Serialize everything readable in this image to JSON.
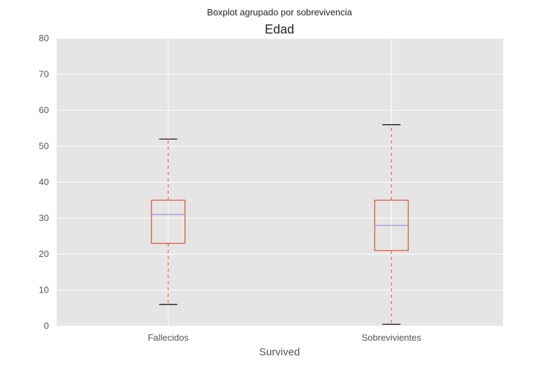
{
  "chart_data": {
    "type": "boxplot",
    "suptitle": "Boxplot agrupado por sobrevivencia",
    "title": "Edad",
    "xlabel": "Survived",
    "ylabel": "",
    "ylim": [
      0,
      80
    ],
    "yticks": [
      0,
      10,
      20,
      30,
      40,
      50,
      60,
      70,
      80
    ],
    "categories": [
      "Fallecidos",
      "Sobrevivientes"
    ],
    "boxes": [
      {
        "category": "Fallecidos",
        "whisker_low": 6,
        "q1": 23,
        "median": 31,
        "q3": 35,
        "whisker_high": 52
      },
      {
        "category": "Sobrevivientes",
        "whisker_low": 0.5,
        "q1": 21,
        "median": 28,
        "q3": 35,
        "whisker_high": 56
      }
    ],
    "grid": true,
    "colors": {
      "background": "#e5e5e5",
      "grid": "#ffffff",
      "box": "#e24a33",
      "median": "#988ed5",
      "cap": "#000000"
    }
  }
}
